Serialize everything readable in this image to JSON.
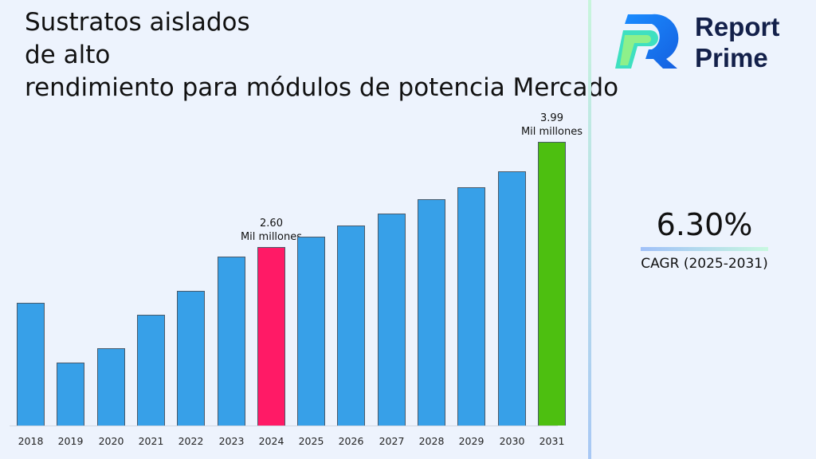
{
  "title_lines": [
    "Sustratos aislados",
    "de alto",
    "rendimiento para módulos de potencia Mercado"
  ],
  "logo": {
    "line1": "Report",
    "line2": "Prime"
  },
  "cagr": {
    "value": "6.30%",
    "label": "CAGR (2025-2031)"
  },
  "colors": {
    "default_bar": "#37a0e8",
    "highlight_2024": "#ff1a66",
    "highlight_2031": "#4dbf10"
  },
  "annotations": [
    {
      "year": "2024",
      "value": "2.60",
      "unit": "Mil millones"
    },
    {
      "year": "2031",
      "value": "3.99",
      "unit": "Mil millones"
    }
  ],
  "chart_data": {
    "type": "bar",
    "title": "Sustratos aislados de alto rendimiento para módulos de potencia Mercado",
    "xlabel": "",
    "ylabel": "Mil millones",
    "categories": [
      "2018",
      "2019",
      "2020",
      "2021",
      "2022",
      "2023",
      "2024",
      "2025",
      "2026",
      "2027",
      "2028",
      "2029",
      "2030",
      "2031"
    ],
    "values": [
      1.86,
      1.07,
      1.26,
      1.7,
      2.02,
      2.47,
      2.6,
      2.74,
      2.88,
      3.04,
      3.23,
      3.39,
      3.6,
      3.99
    ],
    "bar_colors": [
      "#37a0e8",
      "#37a0e8",
      "#37a0e8",
      "#37a0e8",
      "#37a0e8",
      "#37a0e8",
      "#ff1a66",
      "#37a0e8",
      "#37a0e8",
      "#37a0e8",
      "#37a0e8",
      "#37a0e8",
      "#37a0e8",
      "#4dbf10"
    ],
    "data_labels": {
      "2024": "2.60 Mil millones",
      "2031": "3.99 Mil millones"
    },
    "grid": false,
    "legend": "none",
    "cagr": "6.30% (2025-2031)"
  }
}
